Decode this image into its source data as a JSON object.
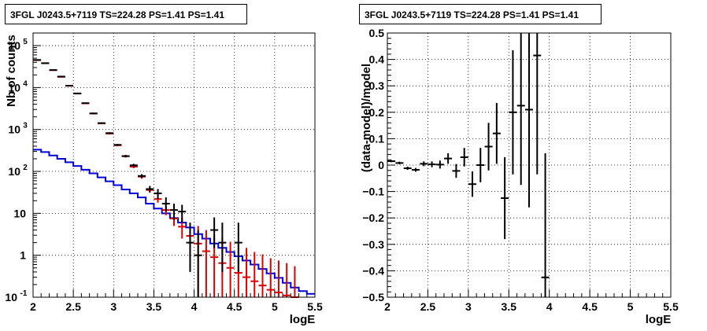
{
  "chart_data": [
    {
      "type": "line",
      "title": "3FGL J0243.5+7119 TS=224.28 PS=1.41 PS=1.41",
      "xlabel": "logE",
      "ylabel": "Nb of counts",
      "xlim": [
        2,
        5.5
      ],
      "ylim": [
        0.1,
        200000
      ],
      "y_scale": "log",
      "grid": true,
      "x_ticks": [
        "2",
        "2.5",
        "3",
        "3.5",
        "4",
        "4.5",
        "5",
        "5.5"
      ],
      "y_ticks": [
        "10^-1",
        "1",
        "10",
        "10^2",
        "10^3",
        "10^4",
        "10^5"
      ],
      "series": [
        {
          "color": "#0000dd",
          "style": "step",
          "bin_edges": [
            2.0,
            2.1,
            2.2,
            2.3,
            2.4,
            2.5,
            2.6,
            2.7,
            2.8,
            2.9,
            3.0,
            3.1,
            3.2,
            3.3,
            3.4,
            3.5,
            3.6,
            3.7,
            3.8,
            3.9,
            4.0,
            4.1,
            4.2,
            4.3,
            4.4,
            4.5,
            4.6,
            4.7,
            4.8,
            4.9,
            5.0,
            5.1,
            5.2,
            5.3,
            5.4,
            5.5
          ],
          "values": [
            330,
            290,
            240,
            200,
            165,
            135,
            110,
            90,
            72,
            58,
            47,
            37,
            30,
            24,
            17,
            13,
            10,
            7.7,
            6.0,
            4.6,
            3.2,
            2.5,
            1.9,
            1.5,
            1.2,
            0.95,
            0.75,
            0.6,
            0.47,
            0.37,
            0.29,
            0.22,
            0.17,
            0.14,
            0.12
          ]
        },
        {
          "color": "#dd0000",
          "style": "errorbar",
          "x": [
            2.05,
            2.15,
            2.25,
            2.35,
            2.45,
            2.55,
            2.65,
            2.75,
            2.85,
            2.95,
            3.05,
            3.15,
            3.25,
            3.35,
            3.45,
            3.55,
            3.65,
            3.75,
            3.85,
            3.95,
            4.05,
            4.15,
            4.25,
            4.35,
            4.45,
            4.55,
            4.65,
            4.75,
            4.85,
            4.95,
            5.05,
            5.15,
            5.25
          ],
          "y": [
            45000,
            38000,
            26000,
            18000,
            11000,
            7200,
            4200,
            2400,
            1400,
            800,
            420,
            230,
            130,
            75,
            36,
            22,
            12,
            7.5,
            4.8,
            2.9,
            1.9,
            1.25,
            0.9,
            0.65,
            0.5,
            0.38,
            0.3,
            0.24,
            0.19,
            0.15,
            0.13,
            0.11,
            0.1
          ],
          "y_low": [
            44000,
            37200,
            25400,
            17600,
            10700,
            6950,
            4050,
            2300,
            1340,
            760,
            400,
            215,
            120,
            67,
            31,
            18,
            9,
            5,
            2.5,
            0.9,
            0.1,
            0.1,
            0.1,
            0.1,
            0.1,
            0.1,
            0.1,
            0.1,
            0.1,
            0.1,
            0.1,
            0.1,
            0.1
          ],
          "y_high": [
            46000,
            38800,
            26600,
            18400,
            11300,
            7450,
            4350,
            2500,
            1460,
            840,
            440,
            245,
            140,
            83,
            41,
            26,
            15,
            10,
            8,
            5.5,
            5,
            4,
            3,
            2.6,
            2.1,
            1.8,
            1.5,
            1.2,
            1.05,
            0.85,
            0.75,
            0.65,
            0.55
          ]
        },
        {
          "color": "#000000",
          "style": "errorbar",
          "x": [
            2.05,
            2.15,
            2.25,
            2.35,
            2.45,
            2.55,
            2.65,
            2.75,
            2.85,
            2.95,
            3.05,
            3.15,
            3.25,
            3.35,
            3.45,
            3.55,
            3.65,
            3.75,
            3.85,
            3.95,
            4.05,
            4.25,
            4.35,
            4.55
          ],
          "y": [
            45500,
            38200,
            26200,
            18300,
            11100,
            7250,
            4250,
            2420,
            1420,
            820,
            430,
            232,
            140,
            78,
            38,
            30,
            17,
            12,
            11,
            2,
            1,
            4,
            2,
            2
          ],
          "y_low": [
            44500,
            37400,
            25600,
            17900,
            10800,
            7000,
            4100,
            2320,
            1360,
            780,
            410,
            217,
            128,
            70,
            32,
            22,
            11,
            7,
            6,
            0.4,
            0.1,
            1.5,
            0.4,
            0.4
          ],
          "y_high": [
            46500,
            39000,
            26800,
            18700,
            11400,
            7500,
            4400,
            2520,
            1480,
            860,
            450,
            247,
            152,
            86,
            45,
            38,
            24,
            17,
            16,
            6,
            4,
            8,
            6,
            6
          ]
        }
      ]
    },
    {
      "type": "scatter",
      "title": "3FGL J0243.5+7119 TS=224.28 PS=1.41 PS=1.41",
      "xlabel": "logE",
      "ylabel": "(data-model)/model",
      "xlim": [
        2,
        5.5
      ],
      "ylim": [
        -0.5,
        0.5
      ],
      "grid": true,
      "x_ticks": [
        "2",
        "2.5",
        "3",
        "3.5",
        "4",
        "4.5",
        "5",
        "5.5"
      ],
      "y_ticks": [
        "−0.5",
        "−0.4",
        "−0.3",
        "−0.2",
        "−0.1",
        "0",
        "0.1",
        "0.2",
        "0.3",
        "0.4",
        "0.5"
      ],
      "series": [
        {
          "color": "#000000",
          "style": "errorbar",
          "x": [
            2.05,
            2.15,
            2.25,
            2.35,
            2.45,
            2.55,
            2.65,
            2.75,
            2.85,
            2.95,
            3.05,
            3.15,
            3.25,
            3.35,
            3.45,
            3.55,
            3.65,
            3.75,
            3.85,
            3.95
          ],
          "y": [
            0.015,
            0.008,
            -0.012,
            -0.018,
            0.005,
            0.003,
            0.002,
            0.025,
            -0.022,
            0.03,
            -0.072,
            0.0,
            0.07,
            0.12,
            -0.125,
            0.2,
            0.225,
            0.21,
            0.415,
            -0.425
          ],
          "y_err": [
            0.004,
            0.005,
            0.006,
            0.007,
            0.009,
            0.011,
            0.015,
            0.02,
            0.026,
            0.035,
            0.048,
            0.065,
            0.09,
            0.115,
            0.155,
            0.235,
            0.3,
            0.37,
            0.45,
            0.47
          ]
        }
      ]
    }
  ]
}
